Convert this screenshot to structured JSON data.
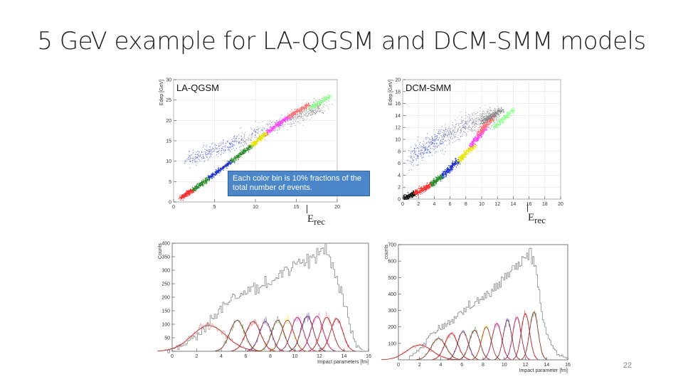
{
  "slide": {
    "title": "5 GeV example for LA-QGSM and DCM-SMM models",
    "note": "Each color bin is 10% fractions of the total number of events.",
    "page_number": "22",
    "erec_left": "E",
    "erec_sub": "rec",
    "erec_right": "E",
    "erec_right_sub": "rec"
  },
  "colors": {
    "bins": [
      "#ff2a2a",
      "#2a8a2a",
      "#1a2fd0",
      "#e6e600",
      "#ff40ff",
      "#ff8080",
      "#90ff90",
      "#ff7070",
      "#888888",
      "#111111"
    ]
  },
  "chart_data": [
    {
      "type": "scatter",
      "label": "LA-QGSM",
      "ylabel": "Edep [GeV]",
      "xlabel": "",
      "xlim": [
        0,
        20
      ],
      "ylim": [
        0,
        30
      ],
      "xticks": [
        "0",
        "5",
        "10",
        "15",
        "20"
      ],
      "yticks": [
        "0",
        "5",
        "10",
        "15",
        "20",
        "25",
        "30"
      ],
      "grid": true,
      "bins": [
        {
          "color": "#ff2a2a",
          "x": [
            0.8,
            2.3
          ],
          "y": [
            1,
            3
          ]
        },
        {
          "color": "#2a8a2a",
          "x": [
            2.3,
            4.3
          ],
          "y": [
            3,
            6
          ]
        },
        {
          "color": "#1a2fd0",
          "x": [
            4.3,
            7.0
          ],
          "y": [
            6,
            10
          ]
        },
        {
          "color": "#2a8a2a",
          "x": [
            7.0,
            9.5
          ],
          "y": [
            10,
            14
          ]
        },
        {
          "color": "#e6e600",
          "x": [
            9.5,
            11.3
          ],
          "y": [
            14,
            17
          ]
        },
        {
          "color": "#ff40ff",
          "x": [
            11.3,
            14.0
          ],
          "y": [
            17,
            21
          ]
        },
        {
          "color": "#ff7070",
          "x": [
            14.0,
            16.5
          ],
          "y": [
            21,
            24
          ]
        },
        {
          "color": "#90ff90",
          "x": [
            16.5,
            19.0
          ],
          "y": [
            23,
            26
          ]
        }
      ],
      "upper_band": {
        "x": [
          1.5,
          8,
          15,
          18.5
        ],
        "y": [
          10,
          15,
          21,
          24
        ]
      }
    },
    {
      "type": "scatter",
      "label": "DCM-SMM",
      "ylabel": "Edep [GeV]",
      "xlabel": "",
      "xlim": [
        0,
        20
      ],
      "ylim": [
        0,
        20
      ],
      "xticks": [
        "0",
        "2",
        "4",
        "6",
        "8",
        "10",
        "12",
        "14",
        "16",
        "18",
        "20"
      ],
      "yticks": [
        "0",
        "2",
        "4",
        "6",
        "8",
        "10",
        "12",
        "14",
        "16",
        "18",
        "20"
      ],
      "grid": true,
      "bins": [
        {
          "color": "#111111",
          "x": [
            0.0,
            1.5
          ],
          "y": [
            0,
            1
          ]
        },
        {
          "color": "#ff2a2a",
          "x": [
            1.5,
            3.5
          ],
          "y": [
            1,
            2.5
          ]
        },
        {
          "color": "#2a8a2a",
          "x": [
            3.5,
            5.0
          ],
          "y": [
            2.5,
            4
          ]
        },
        {
          "color": "#1a2fd0",
          "x": [
            5.0,
            7.0
          ],
          "y": [
            4,
            6.5
          ]
        },
        {
          "color": "#e6e600",
          "x": [
            7.0,
            9.0
          ],
          "y": [
            6.5,
            9
          ]
        },
        {
          "color": "#ff40ff",
          "x": [
            8.5,
            10.5
          ],
          "y": [
            9,
            12
          ]
        },
        {
          "color": "#ff7070",
          "x": [
            9.5,
            11.5
          ],
          "y": [
            11,
            14
          ]
        },
        {
          "color": "#90ff90",
          "x": [
            11.5,
            14.0
          ],
          "y": [
            12,
            15
          ]
        },
        {
          "color": "#888888",
          "x": [
            10.0,
            12.5
          ],
          "y": [
            13,
            15
          ]
        }
      ],
      "upper_band": {
        "x": [
          1.0,
          5,
          9,
          12
        ],
        "y": [
          7,
          10.5,
          13,
          14
        ]
      }
    },
    {
      "type": "line",
      "label": "",
      "ylabel": "Counts",
      "xlabel": "Impact parameters [fm]",
      "xlim": [
        0,
        16
      ],
      "ylim": [
        0,
        400
      ],
      "xticks": [
        "0",
        "2",
        "4",
        "6",
        "8",
        "10",
        "12",
        "14",
        "16"
      ],
      "yticks": [
        "0",
        "50",
        "100",
        "150",
        "200",
        "250",
        "300",
        "350",
        "400"
      ],
      "total": {
        "x": [
          0,
          1,
          2,
          3,
          4,
          5,
          6,
          7,
          8,
          9,
          10,
          11,
          12,
          12.5,
          13,
          13.5,
          14,
          14.5,
          15,
          15.5
        ],
        "y": [
          10,
          25,
          60,
          110,
          160,
          190,
          215,
          240,
          265,
          290,
          315,
          345,
          375,
          385,
          330,
          250,
          180,
          80,
          20,
          5
        ]
      },
      "bin_peaks": [
        {
          "color": "#ff2a2a",
          "center": 3.0,
          "height": 95,
          "width": 1.4
        },
        {
          "color": "#2a8a2a",
          "center": 5.3,
          "height": 115,
          "width": 0.6
        },
        {
          "color": "#ff2a2a",
          "center": 6.6,
          "height": 110,
          "width": 0.6
        },
        {
          "color": "#1a2fd0",
          "center": 7.6,
          "height": 110,
          "width": 0.5
        },
        {
          "color": "#2a8a2a",
          "center": 8.6,
          "height": 115,
          "width": 0.5
        },
        {
          "color": "#e6e600",
          "center": 9.4,
          "height": 115,
          "width": 0.5
        },
        {
          "color": "#ff40ff",
          "center": 10.2,
          "height": 125,
          "width": 0.5
        },
        {
          "color": "#1a2fd0",
          "center": 11.0,
          "height": 130,
          "width": 0.5
        },
        {
          "color": "#ff40ff",
          "center": 11.8,
          "height": 130,
          "width": 0.5
        },
        {
          "color": "#ff7070",
          "center": 12.6,
          "height": 125,
          "width": 0.5
        },
        {
          "color": "#ff2a2a",
          "center": 13.4,
          "height": 120,
          "width": 0.5
        }
      ]
    },
    {
      "type": "line",
      "label": "",
      "ylabel": "counts",
      "xlabel": "Impact parameter [fm]",
      "xlim": [
        0,
        16
      ],
      "ylim": [
        0,
        700
      ],
      "xticks": [
        "0",
        "2",
        "4",
        "6",
        "8",
        "10",
        "12",
        "14",
        "16"
      ],
      "yticks": [
        "100",
        "200",
        "300",
        "400",
        "500",
        "600",
        "700"
      ],
      "total": {
        "x": [
          1,
          2,
          3,
          4,
          5,
          6,
          7,
          8,
          9,
          10,
          11,
          12,
          12.5,
          13,
          13.5,
          14,
          14.5,
          15,
          15.5,
          16
        ],
        "y": [
          20,
          60,
          150,
          200,
          240,
          290,
          340,
          380,
          430,
          500,
          560,
          620,
          650,
          520,
          300,
          150,
          80,
          40,
          15,
          5
        ]
      },
      "bin_peaks": [
        {
          "color": "#ff2a2a",
          "center": 2.0,
          "height": 90,
          "width": 1.2
        },
        {
          "color": "#2a8a2a",
          "center": 3.8,
          "height": 130,
          "width": 0.7
        },
        {
          "color": "#ff2a2a",
          "center": 5.0,
          "height": 160,
          "width": 0.6
        },
        {
          "color": "#1a2fd0",
          "center": 6.1,
          "height": 170,
          "width": 0.5
        },
        {
          "color": "#2a8a2a",
          "center": 7.2,
          "height": 180,
          "width": 0.5
        },
        {
          "color": "#e6e600",
          "center": 8.3,
          "height": 200,
          "width": 0.45
        },
        {
          "color": "#ff40ff",
          "center": 9.3,
          "height": 220,
          "width": 0.45
        },
        {
          "color": "#1a2fd0",
          "center": 10.3,
          "height": 240,
          "width": 0.4
        },
        {
          "color": "#ff40ff",
          "center": 11.2,
          "height": 260,
          "width": 0.4
        },
        {
          "color": "#ff2a2a",
          "center": 12.0,
          "height": 280,
          "width": 0.4
        },
        {
          "color": "#2a8a2a",
          "center": 12.8,
          "height": 290,
          "width": 0.4
        }
      ]
    }
  ]
}
